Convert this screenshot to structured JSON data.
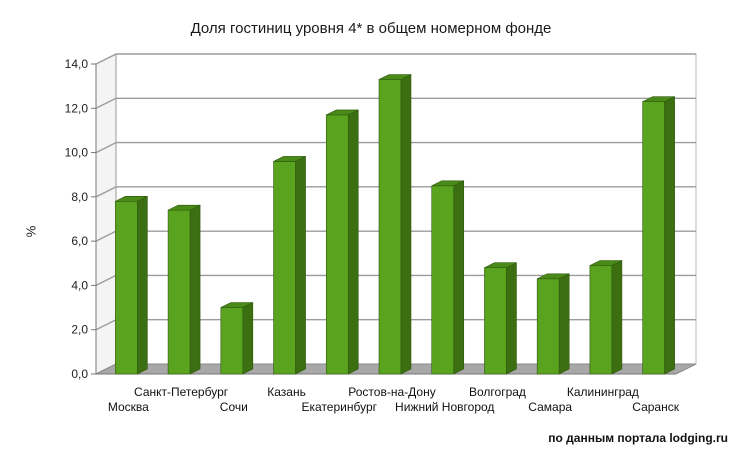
{
  "chart_data": {
    "type": "bar",
    "title": "Доля гостиниц уровня 4* в общем номерном фонде",
    "ylabel": "%",
    "xlabel": "",
    "ylim": [
      0,
      14
    ],
    "y_ticks": [
      "0,0",
      "2,0",
      "4,0",
      "6,0",
      "8,0",
      "10,0",
      "12,0",
      "14,0"
    ],
    "grid": true,
    "legend": "none",
    "categories": [
      "Москва",
      "Санкт-Петербург",
      "Сочи",
      "Казань",
      "Екатеринбург",
      "Ростов-на-Дону",
      "Нижний Новгород",
      "Волгоград",
      "Самара",
      "Калининград",
      "Саранск"
    ],
    "values": [
      7.8,
      7.4,
      3.0,
      9.6,
      11.7,
      13.3,
      8.5,
      4.8,
      4.3,
      4.9,
      12.3
    ],
    "bar_color": "#5aa31f",
    "bar_side_color": "#3c6e12",
    "bar_top_color": "#4a8a18"
  },
  "source_note": "по данным портала lodging.ru"
}
